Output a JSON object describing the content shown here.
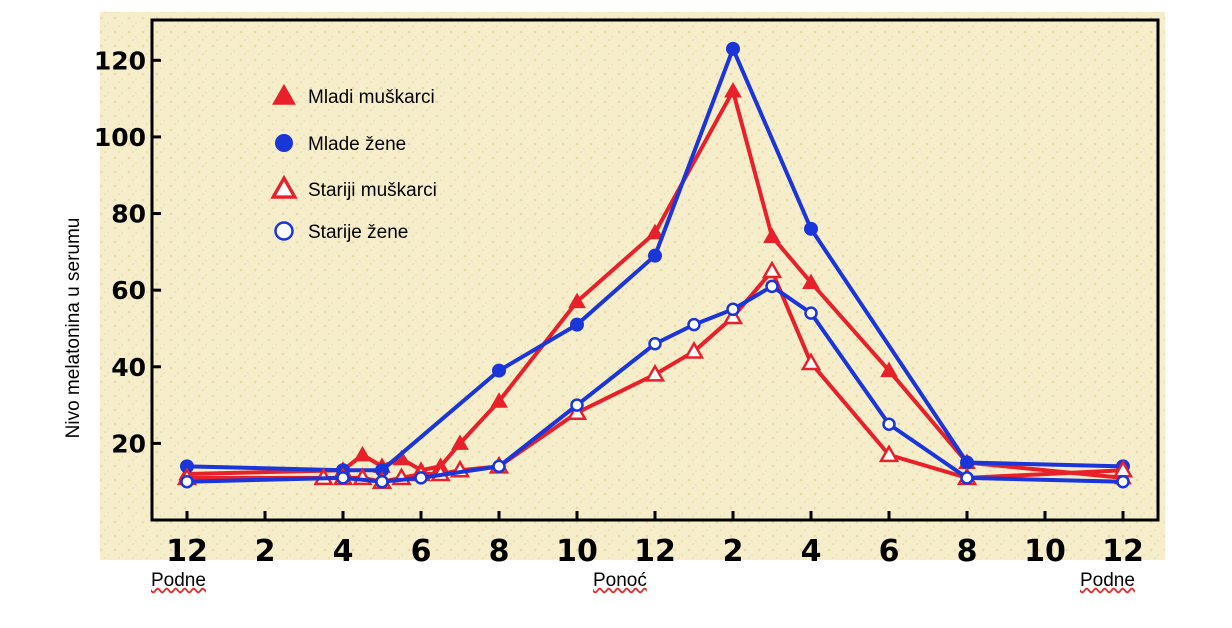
{
  "chart_data": {
    "type": "line",
    "ylabel": "Nivo melatonina u serumu",
    "ylim": [
      0,
      130
    ],
    "yticks": [
      20,
      40,
      60,
      80,
      100,
      120
    ],
    "x_ticks": [
      "12",
      "2",
      "4",
      "6",
      "8",
      "10",
      "12",
      "2",
      "4",
      "6",
      "8",
      "10",
      "12"
    ],
    "xlim": [
      0,
      24.5
    ],
    "time_labels": {
      "left": "Podne",
      "center": "Ponoć",
      "right": "Podne"
    },
    "grid": false,
    "legend_position": "top-left",
    "series": [
      {
        "name": "Mladi muškarci",
        "color": "#e8202a",
        "marker": "triangle-filled",
        "x": [
          0,
          4,
          4.5,
          5,
          5.5,
          6,
          6.5,
          7,
          8,
          10,
          12,
          14,
          15,
          16,
          18,
          20,
          24
        ],
        "y": [
          12,
          13,
          17,
          14,
          16,
          13,
          14,
          20,
          31,
          57,
          75,
          112,
          74,
          62,
          39,
          15,
          11
        ]
      },
      {
        "name": "Mlade žene",
        "color": "#1a35d8",
        "marker": "circle-filled",
        "x": [
          0,
          4,
          5,
          8,
          10,
          12,
          14,
          16,
          20,
          24
        ],
        "y": [
          14,
          13,
          13,
          39,
          51,
          69,
          123,
          76,
          15,
          14
        ]
      },
      {
        "name": "Stariji muškarci",
        "color": "#e8202a",
        "marker": "triangle-open",
        "x": [
          0,
          3.5,
          4,
          4.5,
          5,
          5.5,
          6,
          6.5,
          7,
          8,
          10,
          12,
          13,
          14,
          15,
          16,
          18,
          20,
          24
        ],
        "y": [
          11,
          11,
          11,
          11,
          10,
          11,
          12,
          12,
          13,
          14,
          28,
          38,
          44,
          53,
          65,
          41,
          17,
          11,
          13
        ]
      },
      {
        "name": "Starije žene",
        "color": "#1a35d8",
        "marker": "circle-open",
        "x": [
          0,
          4,
          5,
          6,
          8,
          10,
          12,
          13,
          14,
          15,
          16,
          18,
          20,
          24
        ],
        "y": [
          10,
          11,
          10,
          11,
          14,
          30,
          46,
          51,
          55,
          61,
          54,
          25,
          11,
          10
        ]
      }
    ]
  }
}
